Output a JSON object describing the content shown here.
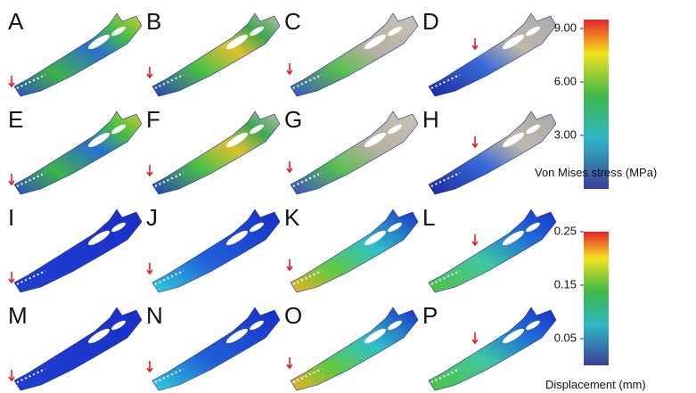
{
  "panels": [
    "A",
    "B",
    "C",
    "D",
    "E",
    "F",
    "G",
    "H",
    "I",
    "J",
    "K",
    "L",
    "M",
    "N",
    "O",
    "P"
  ],
  "colorbars": [
    {
      "label": "Von Mises stress (MPa)",
      "lim": [
        0,
        9.5
      ],
      "ticks": [
        {
          "value": 9,
          "label": "9.00"
        },
        {
          "value": 6,
          "label": "6.00"
        },
        {
          "value": 3,
          "label": "3.00"
        }
      ]
    },
    {
      "label": "Displacement (mm)",
      "lim": [
        0,
        0.25
      ],
      "ticks": [
        0.25,
        0.15,
        0.05
      ]
    }
  ]
}
